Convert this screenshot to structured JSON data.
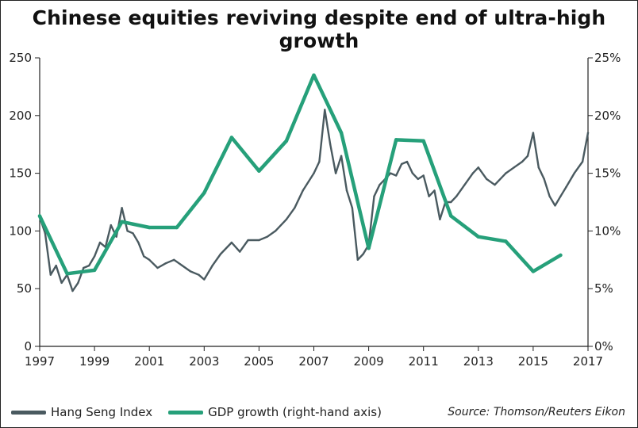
{
  "title": "Chinese equities reviving despite end of ultra-high growth",
  "source": "Source: Thomson/Reuters Eikon",
  "colors": {
    "hang_seng": "#4a5a60",
    "gdp": "#26a07a",
    "axis": "#222222"
  },
  "chart_data": {
    "type": "line",
    "title": "Chinese equities reviving despite end of ultra-high growth",
    "xlim": [
      1997,
      2017
    ],
    "x_ticks": [
      1997,
      1999,
      2001,
      2003,
      2005,
      2007,
      2009,
      2011,
      2013,
      2015,
      2017
    ],
    "y_left": {
      "label": "",
      "ylim": [
        0,
        250
      ],
      "ticks": [
        0,
        50,
        100,
        150,
        200,
        250
      ]
    },
    "y_right": {
      "label": "",
      "ylim": [
        0,
        25
      ],
      "ticks": [
        "0%",
        "5%",
        "10%",
        "15%",
        "20%",
        "25%"
      ],
      "tick_values": [
        0,
        5,
        10,
        15,
        20,
        25
      ]
    },
    "grid": false,
    "legend_position": "bottom-left",
    "series": [
      {
        "name": "Hang Seng Index",
        "axis": "left",
        "x": [
          1997.0,
          1997.2,
          1997.4,
          1997.6,
          1997.8,
          1998.0,
          1998.2,
          1998.4,
          1998.6,
          1998.8,
          1999.0,
          1999.2,
          1999.4,
          1999.6,
          1999.8,
          2000.0,
          2000.2,
          2000.4,
          2000.6,
          2000.8,
          2001.0,
          2001.3,
          2001.6,
          2001.9,
          2002.2,
          2002.5,
          2002.8,
          2003.0,
          2003.3,
          2003.6,
          2004.0,
          2004.3,
          2004.6,
          2005.0,
          2005.3,
          2005.6,
          2006.0,
          2006.3,
          2006.6,
          2007.0,
          2007.2,
          2007.4,
          2007.6,
          2007.8,
          2008.0,
          2008.2,
          2008.4,
          2008.6,
          2008.8,
          2009.0,
          2009.2,
          2009.4,
          2009.6,
          2009.8,
          2010.0,
          2010.2,
          2010.4,
          2010.6,
          2010.8,
          2011.0,
          2011.2,
          2011.4,
          2011.6,
          2011.8,
          2012.0,
          2012.2,
          2012.5,
          2012.8,
          2013.0,
          2013.3,
          2013.6,
          2014.0,
          2014.3,
          2014.6,
          2014.8,
          2015.0,
          2015.2,
          2015.4,
          2015.6,
          2015.8,
          2016.0,
          2016.2,
          2016.5,
          2016.8,
          2017.0
        ],
        "values": [
          112,
          98,
          62,
          70,
          55,
          62,
          48,
          55,
          68,
          70,
          78,
          90,
          86,
          105,
          95,
          120,
          100,
          98,
          90,
          78,
          75,
          68,
          72,
          75,
          70,
          65,
          62,
          58,
          70,
          80,
          90,
          82,
          92,
          92,
          95,
          100,
          110,
          120,
          135,
          150,
          160,
          205,
          175,
          150,
          165,
          135,
          120,
          75,
          80,
          88,
          130,
          140,
          145,
          150,
          148,
          158,
          160,
          150,
          145,
          148,
          130,
          135,
          110,
          125,
          125,
          130,
          140,
          150,
          155,
          145,
          140,
          150,
          155,
          160,
          165,
          185,
          155,
          145,
          130,
          122,
          130,
          138,
          150,
          160,
          185
        ]
      },
      {
        "name": "GDP growth (right-hand axis)",
        "axis": "right",
        "x": [
          1997,
          1998,
          1999,
          2000,
          2001,
          2002,
          2003,
          2004,
          2005,
          2006,
          2007,
          2008,
          2009,
          2010,
          2011,
          2012,
          2013,
          2014,
          2015,
          2016
        ],
        "values": [
          11.3,
          6.3,
          6.6,
          10.8,
          10.3,
          10.3,
          13.3,
          18.1,
          15.2,
          17.8,
          23.5,
          18.5,
          8.5,
          17.9,
          17.8,
          11.3,
          9.5,
          9.1,
          6.5,
          7.9
        ]
      }
    ]
  }
}
